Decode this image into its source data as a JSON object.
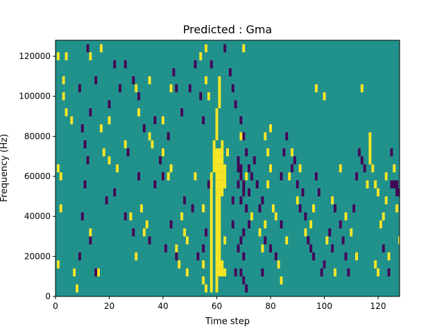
{
  "chart_data": {
    "type": "heatmap",
    "title": "Predicted : Gma",
    "xlabel": "Time step",
    "ylabel": "Frequency (Hz)",
    "xlim": [
      0,
      128
    ],
    "ylim": [
      0,
      128000
    ],
    "x_ticks": [
      0,
      20,
      40,
      60,
      80,
      100,
      120
    ],
    "y_ticks": [
      0,
      20000,
      40000,
      60000,
      80000,
      100000,
      120000
    ],
    "colors": {
      "background": "#21918c",
      "low": "#440154",
      "high": "#fde725"
    },
    "background_value": 0,
    "cell_size": {
      "time_steps": 1,
      "hz": 4000
    },
    "high_cells": [
      [
        1,
        120000
      ],
      [
        4,
        120000
      ],
      [
        13,
        120000
      ],
      [
        17,
        124000
      ],
      [
        54,
        120000
      ],
      [
        56,
        124000
      ],
      [
        70,
        124000
      ],
      [
        3,
        108000
      ],
      [
        3,
        100000
      ],
      [
        4,
        92000
      ],
      [
        6,
        88000
      ],
      [
        20,
        88000
      ],
      [
        30,
        104000
      ],
      [
        35,
        108000
      ],
      [
        43,
        104000
      ],
      [
        56,
        108000
      ],
      [
        61,
        108000
      ],
      [
        61,
        104000
      ],
      [
        61,
        100000
      ],
      [
        61,
        96000
      ],
      [
        60,
        92000
      ],
      [
        60,
        88000
      ],
      [
        60,
        84000
      ],
      [
        60,
        80000
      ],
      [
        59,
        76000
      ],
      [
        59,
        72000
      ],
      [
        59,
        68000
      ],
      [
        59,
        64000
      ],
      [
        58,
        60000
      ],
      [
        58,
        56000
      ],
      [
        58,
        52000
      ],
      [
        58,
        48000
      ],
      [
        58,
        44000
      ],
      [
        58,
        40000
      ],
      [
        58,
        36000
      ],
      [
        58,
        32000
      ],
      [
        58,
        28000
      ],
      [
        58,
        24000
      ],
      [
        58,
        20000
      ],
      [
        58,
        16000
      ],
      [
        58,
        12000
      ],
      [
        58,
        8000
      ],
      [
        58,
        4000
      ],
      [
        60,
        72000
      ],
      [
        60,
        68000
      ],
      [
        60,
        64000
      ],
      [
        60,
        60000
      ],
      [
        60,
        56000
      ],
      [
        60,
        52000
      ],
      [
        60,
        48000
      ],
      [
        60,
        44000
      ],
      [
        60,
        40000
      ],
      [
        60,
        36000
      ],
      [
        60,
        32000
      ],
      [
        60,
        28000
      ],
      [
        60,
        24000
      ],
      [
        60,
        20000
      ],
      [
        60,
        16000
      ],
      [
        60,
        12000
      ],
      [
        60,
        8000
      ],
      [
        60,
        4000
      ],
      [
        61,
        72000
      ],
      [
        61,
        68000
      ],
      [
        61,
        64000
      ],
      [
        61,
        60000
      ],
      [
        61,
        56000
      ],
      [
        61,
        52000
      ],
      [
        61,
        48000
      ],
      [
        61,
        44000
      ],
      [
        61,
        40000
      ],
      [
        61,
        36000
      ],
      [
        61,
        32000
      ],
      [
        61,
        28000
      ],
      [
        61,
        24000
      ],
      [
        61,
        20000
      ],
      [
        61,
        16000
      ],
      [
        61,
        12000
      ],
      [
        62,
        76000
      ],
      [
        62,
        72000
      ],
      [
        62,
        68000
      ],
      [
        62,
        64000
      ],
      [
        62,
        60000
      ],
      [
        62,
        56000
      ],
      [
        62,
        52000
      ],
      [
        62,
        16000
      ],
      [
        62,
        12000
      ],
      [
        63,
        64000
      ],
      [
        63,
        60000
      ],
      [
        63,
        56000
      ],
      [
        63,
        28000
      ],
      [
        63,
        12000
      ],
      [
        55,
        8000
      ],
      [
        56,
        4000
      ],
      [
        55,
        16000
      ],
      [
        1,
        64000
      ],
      [
        2,
        60000
      ],
      [
        2,
        44000
      ],
      [
        1,
        16000
      ],
      [
        7,
        12000
      ],
      [
        8,
        4000
      ],
      [
        13,
        32000
      ],
      [
        16,
        12000
      ],
      [
        17,
        84000
      ],
      [
        18,
        72000
      ],
      [
        20,
        68000
      ],
      [
        23,
        64000
      ],
      [
        26,
        76000
      ],
      [
        28,
        40000
      ],
      [
        30,
        20000
      ],
      [
        31,
        92000
      ],
      [
        32,
        44000
      ],
      [
        33,
        32000
      ],
      [
        34,
        36000
      ],
      [
        35,
        80000
      ],
      [
        36,
        76000
      ],
      [
        40,
        88000
      ],
      [
        40,
        72000
      ],
      [
        42,
        60000
      ],
      [
        43,
        64000
      ],
      [
        45,
        24000
      ],
      [
        46,
        16000
      ],
      [
        47,
        40000
      ],
      [
        48,
        32000
      ],
      [
        49,
        12000
      ],
      [
        49,
        28000
      ],
      [
        52,
        60000
      ],
      [
        55,
        44000
      ],
      [
        57,
        100000
      ],
      [
        64,
        72000
      ],
      [
        69,
        80000
      ],
      [
        71,
        60000
      ],
      [
        73,
        40000
      ],
      [
        76,
        32000
      ],
      [
        77,
        24000
      ],
      [
        78,
        36000
      ],
      [
        79,
        56000
      ],
      [
        78,
        80000
      ],
      [
        79,
        72000
      ],
      [
        80,
        64000
      ],
      [
        80,
        84000
      ],
      [
        81,
        44000
      ],
      [
        82,
        40000
      ],
      [
        83,
        16000
      ],
      [
        84,
        8000
      ],
      [
        86,
        28000
      ],
      [
        87,
        60000
      ],
      [
        88,
        72000
      ],
      [
        90,
        48000
      ],
      [
        91,
        64000
      ],
      [
        93,
        32000
      ],
      [
        95,
        36000
      ],
      [
        96,
        44000
      ],
      [
        97,
        104000
      ],
      [
        100,
        100000
      ],
      [
        101,
        28000
      ],
      [
        103,
        48000
      ],
      [
        104,
        12000
      ],
      [
        106,
        64000
      ],
      [
        108,
        40000
      ],
      [
        110,
        32000
      ],
      [
        112,
        20000
      ],
      [
        114,
        104000
      ],
      [
        117,
        80000
      ],
      [
        117,
        76000
      ],
      [
        117,
        72000
      ],
      [
        117,
        68000
      ],
      [
        116,
        56000
      ],
      [
        118,
        64000
      ],
      [
        119,
        56000
      ],
      [
        120,
        52000
      ],
      [
        121,
        36000
      ],
      [
        122,
        40000
      ],
      [
        119,
        16000
      ],
      [
        120,
        12000
      ],
      [
        123,
        48000
      ],
      [
        124,
        20000
      ],
      [
        123,
        60000
      ],
      [
        126,
        64000
      ],
      [
        128,
        28000
      ],
      [
        127,
        44000
      ]
    ],
    "low_cells": [
      [
        12,
        124000
      ],
      [
        13,
        92000
      ],
      [
        15,
        108000
      ],
      [
        20,
        96000
      ],
      [
        22,
        116000
      ],
      [
        24,
        104000
      ],
      [
        26,
        116000
      ],
      [
        27,
        72000
      ],
      [
        29,
        108000
      ],
      [
        31,
        100000
      ],
      [
        33,
        84000
      ],
      [
        37,
        88000
      ],
      [
        39,
        68000
      ],
      [
        40,
        60000
      ],
      [
        42,
        80000
      ],
      [
        44,
        112000
      ],
      [
        45,
        104000
      ],
      [
        47,
        92000
      ],
      [
        50,
        104000
      ],
      [
        52,
        116000
      ],
      [
        54,
        100000
      ],
      [
        55,
        88000
      ],
      [
        56,
        124000
      ],
      [
        58,
        116000
      ],
      [
        63,
        124000
      ],
      [
        65,
        112000
      ],
      [
        66,
        104000
      ],
      [
        67,
        96000
      ],
      [
        69,
        88000
      ],
      [
        70,
        80000
      ],
      [
        71,
        72000
      ],
      [
        72,
        64000
      ],
      [
        68,
        68000
      ],
      [
        68,
        64000
      ],
      [
        69,
        64000
      ],
      [
        69,
        60000
      ],
      [
        70,
        56000
      ],
      [
        70,
        52000
      ],
      [
        69,
        48000
      ],
      [
        71,
        44000
      ],
      [
        72,
        36000
      ],
      [
        70,
        32000
      ],
      [
        69,
        28000
      ],
      [
        68,
        24000
      ],
      [
        70,
        20000
      ],
      [
        69,
        12000
      ],
      [
        70,
        8000
      ],
      [
        71,
        4000
      ],
      [
        67,
        12000
      ],
      [
        66,
        48000
      ],
      [
        66,
        36000
      ],
      [
        68,
        56000
      ],
      [
        73,
        60000
      ],
      [
        72,
        52000
      ],
      [
        74,
        68000
      ],
      [
        75,
        56000
      ],
      [
        76,
        44000
      ],
      [
        77,
        48000
      ],
      [
        78,
        28000
      ],
      [
        77,
        12000
      ],
      [
        80,
        24000
      ],
      [
        82,
        20000
      ],
      [
        84,
        36000
      ],
      [
        84,
        60000
      ],
      [
        85,
        72000
      ],
      [
        86,
        80000
      ],
      [
        88,
        64000
      ],
      [
        89,
        68000
      ],
      [
        90,
        56000
      ],
      [
        91,
        44000
      ],
      [
        92,
        52000
      ],
      [
        93,
        40000
      ],
      [
        94,
        28000
      ],
      [
        95,
        24000
      ],
      [
        96,
        20000
      ],
      [
        97,
        60000
      ],
      [
        98,
        52000
      ],
      [
        99,
        12000
      ],
      [
        100,
        16000
      ],
      [
        102,
        32000
      ],
      [
        103,
        24000
      ],
      [
        104,
        44000
      ],
      [
        106,
        36000
      ],
      [
        107,
        28000
      ],
      [
        108,
        20000
      ],
      [
        109,
        12000
      ],
      [
        111,
        44000
      ],
      [
        112,
        60000
      ],
      [
        113,
        72000
      ],
      [
        114,
        68000
      ],
      [
        115,
        64000
      ],
      [
        121,
        36000
      ],
      [
        122,
        24000
      ],
      [
        124,
        12000
      ],
      [
        125,
        72000
      ],
      [
        126,
        56000
      ],
      [
        127,
        52000
      ],
      [
        128,
        52000
      ],
      [
        125,
        56000
      ],
      [
        127,
        56000
      ],
      [
        9,
        104000
      ],
      [
        10,
        84000
      ],
      [
        11,
        76000
      ],
      [
        12,
        68000
      ],
      [
        11,
        56000
      ],
      [
        10,
        40000
      ],
      [
        9,
        20000
      ],
      [
        13,
        28000
      ],
      [
        15,
        12000
      ],
      [
        19,
        48000
      ],
      [
        22,
        52000
      ],
      [
        26,
        40000
      ],
      [
        29,
        32000
      ],
      [
        31,
        60000
      ],
      [
        35,
        28000
      ],
      [
        37,
        56000
      ],
      [
        41,
        24000
      ],
      [
        43,
        36000
      ],
      [
        45,
        20000
      ],
      [
        48,
        48000
      ],
      [
        51,
        44000
      ],
      [
        53,
        20000
      ],
      [
        55,
        24000
      ],
      [
        56,
        32000
      ],
      [
        57,
        56000
      ]
    ]
  }
}
